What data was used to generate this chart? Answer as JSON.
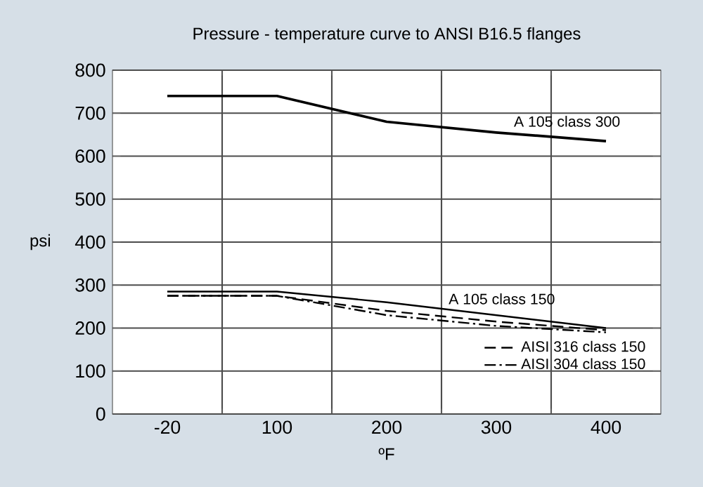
{
  "chart_data": {
    "type": "line",
    "title": "Pressure - temperature curve to ANSI B16.5 flanges",
    "xlabel": "ºF",
    "ylabel": "psi",
    "categories": [
      "-20",
      "100",
      "200",
      "300",
      "400"
    ],
    "series": [
      {
        "name": "A 105 class 300",
        "color": "#000000",
        "line_style": "solid",
        "values": [
          740,
          740,
          680,
          655,
          635
        ]
      },
      {
        "name": "A 105 class 150",
        "color": "#000000",
        "line_style": "solid",
        "values": [
          285,
          285,
          260,
          230,
          200
        ]
      },
      {
        "name": "AISI 316 class 150",
        "color": "#000000",
        "line_style": "dashed",
        "values": [
          275,
          275,
          240,
          215,
          195
        ]
      },
      {
        "name": "AISI 304 class 150",
        "color": "#000000",
        "line_style": "dashdot",
        "values": [
          275,
          275,
          230,
          205,
          190
        ]
      }
    ],
    "ylim": [
      0,
      800
    ],
    "yticks": [
      0,
      100,
      200,
      300,
      400,
      500,
      600,
      700,
      800
    ],
    "grid": true,
    "legend": "bottom right",
    "marker": "none"
  }
}
